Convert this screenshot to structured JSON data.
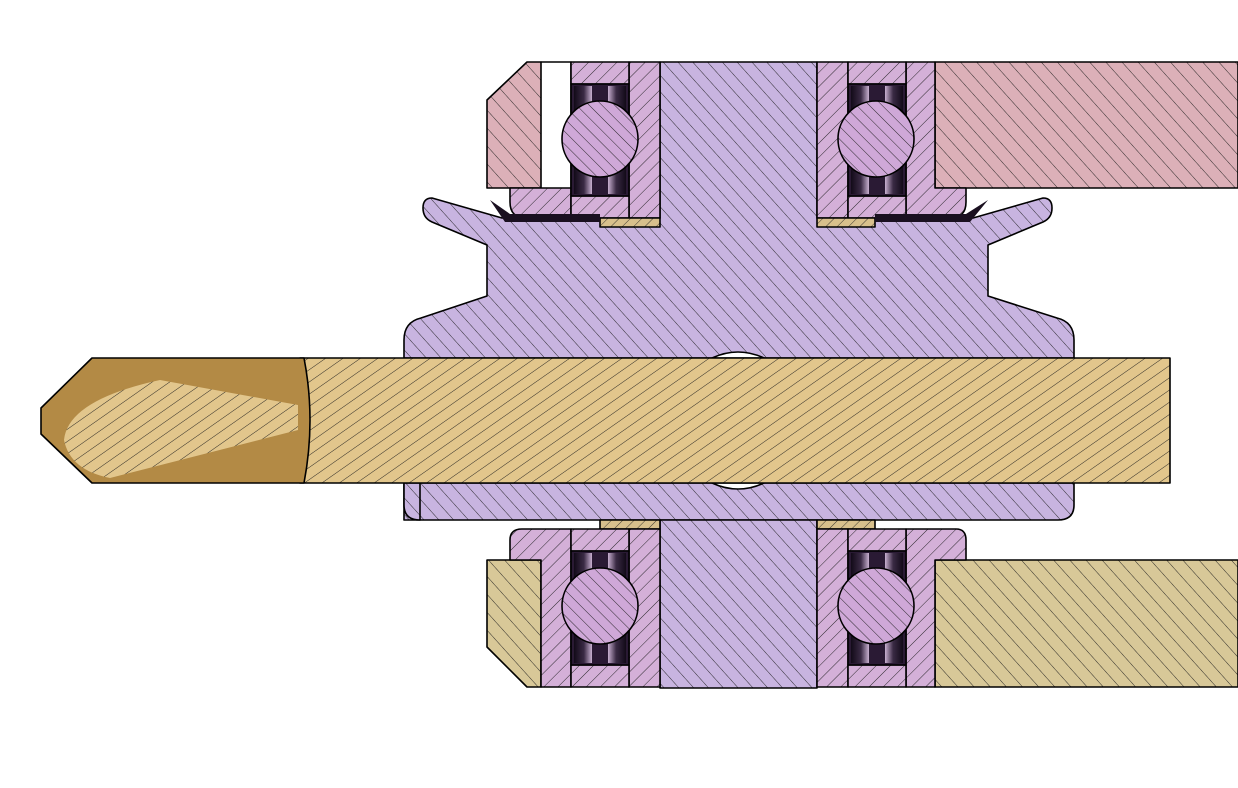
{
  "drawing": {
    "view": "section-view",
    "description_visible_text": "",
    "parts": [
      {
        "name": "upper-housing",
        "color": "#dcb0b8"
      },
      {
        "name": "lower-housing",
        "color": "#d8c898"
      },
      {
        "name": "pulley-hub",
        "color": "#c8b4e0"
      },
      {
        "name": "bearing-ring",
        "color": "#d4b0d8"
      },
      {
        "name": "bearing-ball",
        "color": "#cfa8d8"
      },
      {
        "name": "shaft",
        "color": "#e2c68c"
      },
      {
        "name": "shaft-tip",
        "color": "#b38a45"
      },
      {
        "name": "spacer-washer",
        "color": "#d8c08c"
      }
    ],
    "colors": {
      "background": "#ffffff",
      "outline": "#000000",
      "hatch": "#1a1a1a",
      "bearing_shadow": "#1a1020"
    }
  }
}
